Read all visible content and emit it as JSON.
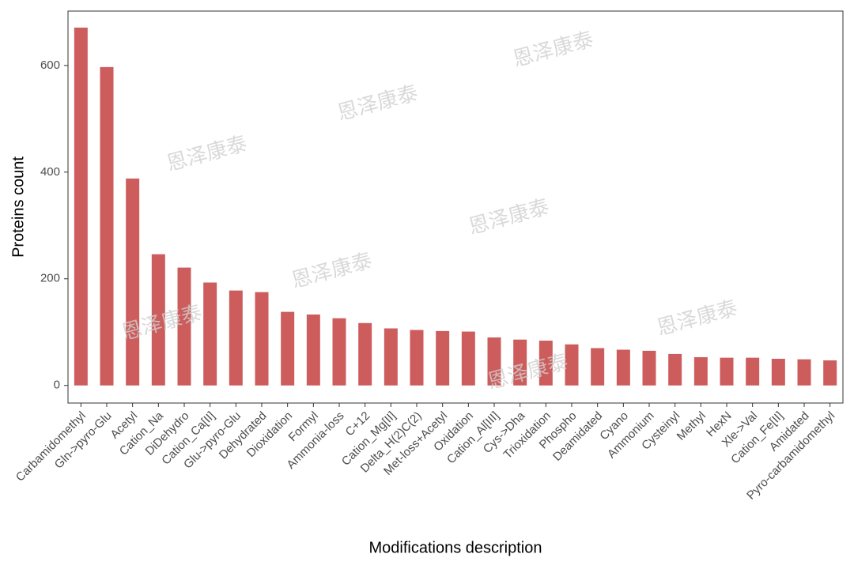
{
  "chart_data": {
    "type": "bar",
    "x_label": "Modifications description",
    "y_label": "Proteins count",
    "watermark": "恩泽康泰",
    "categories": [
      "Carbamidomethyl",
      "Gln->pyro-Glu",
      "Acetyl",
      "Cation_Na",
      "DiDehydro",
      "Cation_Ca[II]",
      "Glu->pyro-Glu",
      "Dehydrated",
      "Dioxidation",
      "Formyl",
      "Ammonia-loss",
      "C+12",
      "Cation_Mg[II]",
      "Delta_H(2)C(2)",
      "Met-loss+Acetyl",
      "Oxidation",
      "Cation_Al[III]",
      "Cys->Dha",
      "Trioxidation",
      "Phospho",
      "Deamidated",
      "Cyano",
      "Ammonium",
      "Cysteinyl",
      "Methyl",
      "HexN",
      "Xle->Val",
      "Cation_Fe[II]",
      "Amidated",
      "Pyro-carbamidomethyl"
    ],
    "values": [
      671,
      597,
      388,
      246,
      221,
      193,
      178,
      175,
      138,
      133,
      126,
      117,
      107,
      104,
      102,
      101,
      90,
      86,
      84,
      77,
      70,
      67,
      65,
      59,
      53,
      52,
      52,
      50,
      49,
      47
    ],
    "color": "#cd5c5c",
    "ylim": [
      -33,
      702
    ],
    "yticks": [
      0,
      200,
      400,
      600
    ],
    "grid": false
  }
}
